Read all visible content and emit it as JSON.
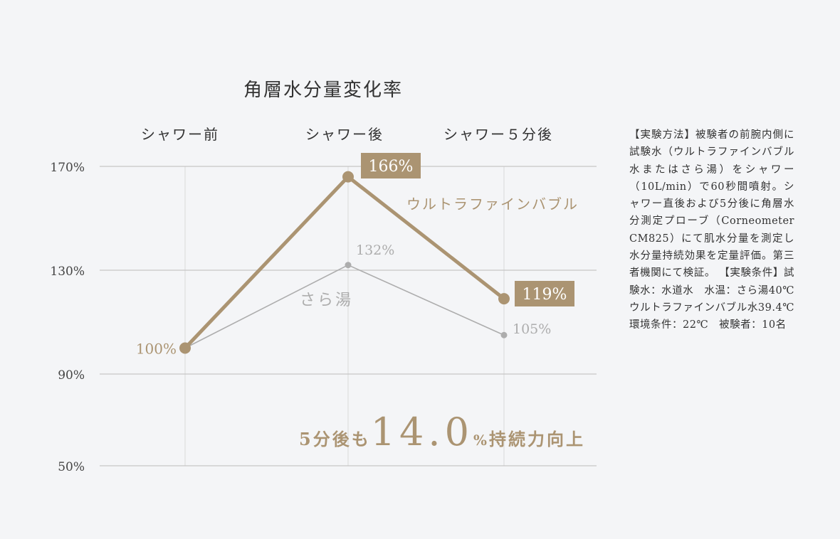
{
  "title": "角層水分量変化率",
  "note": "【実験方法】被験者の前腕内側に試験水（ウルトラファインバブル水またはさら湯）をシャワー（10L/min）で60秒間噴射。シャワー直後および5分後に角層水分測定プローブ（Corneometer CM825）にて肌水分量を測定し水分量持続効果を定量評価。第三者機関にて検証。 【実験条件】試験水：水道水　水温：さら湯40℃ ウルトラファインバブル水39.4℃　環境条件：22℃　被験者：10名",
  "headline": {
    "prefix": "5分後も",
    "value": "14.0",
    "unit": "%",
    "suffix": "持続力向上"
  },
  "colors": {
    "ufb": "#ab9472",
    "sara": "#adadad",
    "grid": "#c6c6c6",
    "vgrid": "#dedede",
    "background": "#f4f5f7"
  },
  "chart_data": {
    "type": "line",
    "title": "角層水分量変化率",
    "categories": [
      "シャワー前",
      "シャワー後",
      "シャワー５分後"
    ],
    "yticks": [
      "170%",
      "130%",
      "90%",
      "50%"
    ],
    "ytick_values": [
      170,
      130,
      90,
      50
    ],
    "series": [
      {
        "name": "ウルトラファインバブル",
        "values": [
          100,
          166,
          119
        ],
        "labels": [
          "100%",
          "166%",
          "119%"
        ]
      },
      {
        "name": "さら湯",
        "values": [
          100,
          132,
          105
        ],
        "labels": [
          "",
          "132%",
          "105%"
        ]
      }
    ]
  }
}
